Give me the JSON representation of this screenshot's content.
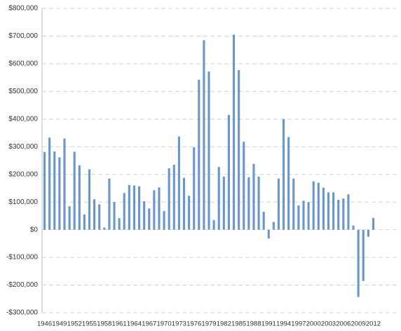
{
  "chart_data": {
    "type": "bar",
    "categories": [
      "1946",
      null,
      null,
      "1949",
      null,
      null,
      "1952",
      null,
      null,
      "1955",
      null,
      null,
      "1958",
      null,
      null,
      "1961",
      null,
      null,
      "1964",
      null,
      null,
      "1967",
      null,
      null,
      "1970",
      null,
      null,
      "1973",
      null,
      null,
      "1976",
      null,
      null,
      "1979",
      null,
      null,
      "1982",
      null,
      null,
      "1985",
      null,
      null,
      "1988",
      null,
      null,
      "1991",
      null,
      null,
      "1994",
      null,
      null,
      "1997",
      null,
      null,
      "2000",
      null,
      null,
      "2003",
      null,
      null,
      "2006",
      null,
      null,
      "2009",
      null,
      null,
      "2012"
    ],
    "values": [
      281000,
      333000,
      283000,
      262000,
      330000,
      85000,
      282000,
      233000,
      55000,
      218000,
      110000,
      92000,
      8000,
      185000,
      100000,
      42000,
      133000,
      162000,
      160000,
      157000,
      103000,
      77000,
      143000,
      153000,
      68000,
      222000,
      235000,
      337000,
      188000,
      123000,
      298000,
      542000,
      685000,
      572000,
      35000,
      227000,
      192000,
      415000,
      705000,
      577000,
      318000,
      190000,
      238000,
      192000,
      65000,
      -32000,
      28000,
      185000,
      400000,
      335000,
      185000,
      88000,
      105000,
      100000,
      175000,
      170000,
      152000,
      135000,
      135000,
      108000,
      113000,
      128000,
      15000,
      -243000,
      -185000,
      -25000,
      43000
    ],
    "color": "#6a97c9",
    "ylim": [
      -300000,
      800000
    ],
    "yticks": [
      {
        "value": -300000,
        "label": "-$300,000"
      },
      {
        "value": -200000,
        "label": "-$200,000"
      },
      {
        "value": -100000,
        "label": "-$100,000"
      },
      {
        "value": 0,
        "label": "$0"
      },
      {
        "value": 100000,
        "label": "$100,000"
      },
      {
        "value": 200000,
        "label": "$200,000"
      },
      {
        "value": 300000,
        "label": "$300,000"
      },
      {
        "value": 400000,
        "label": "$400,000"
      },
      {
        "value": 500000,
        "label": "$500,000"
      },
      {
        "value": 600000,
        "label": "$600,000"
      },
      {
        "value": 700000,
        "label": "$700,000"
      },
      {
        "value": 800000,
        "label": "$800,000"
      }
    ],
    "grid": true
  }
}
